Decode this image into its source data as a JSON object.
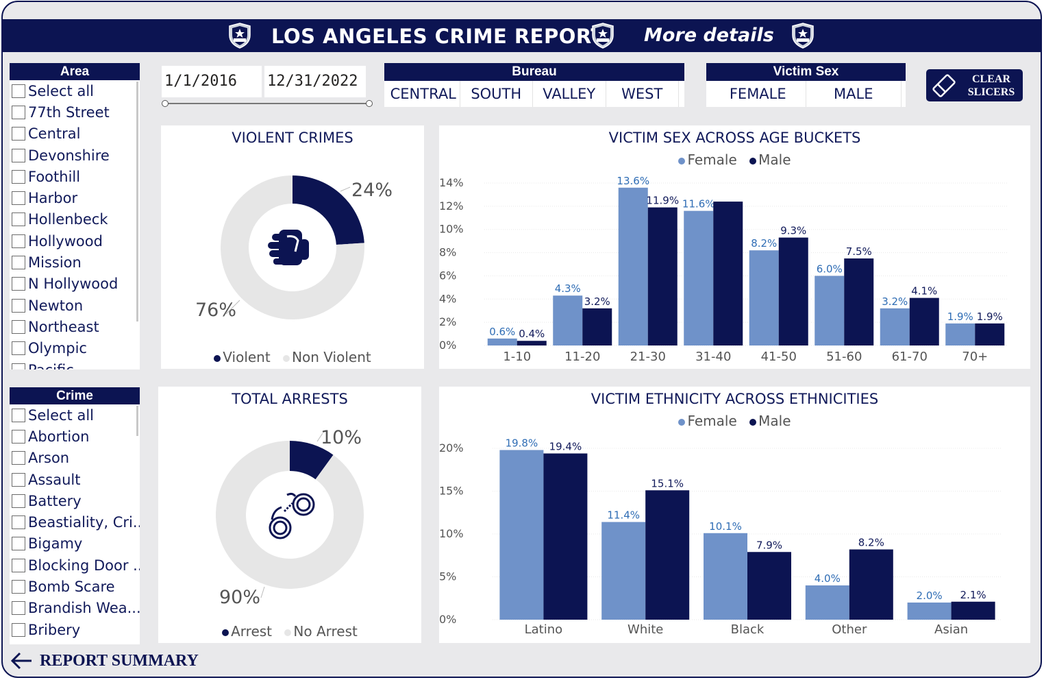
{
  "header": {
    "title": "LOS ANGELES CRIME REPORT",
    "more_details": "More details"
  },
  "area_slicer": {
    "title": "Area",
    "items": [
      "Select all",
      "77th Street",
      "Central",
      "Devonshire",
      "Foothill",
      "Harbor",
      "Hollenbeck",
      "Hollywood",
      "Mission",
      "N Hollywood",
      "Newton",
      "Northeast",
      "Olympic",
      "Pacific"
    ]
  },
  "crime_slicer": {
    "title": "Crime",
    "items": [
      "Select all",
      "Abortion",
      "Arson",
      "Assault",
      "Battery",
      "Beastiality, Cri...",
      "Bigamy",
      "Blocking Door ...",
      "Bomb Scare",
      "Brandish Wea...",
      "Bribery"
    ]
  },
  "date_range": {
    "start": "1/1/2016",
    "end": "12/31/2022"
  },
  "bureau_slicer": {
    "title": "Bureau",
    "options": [
      "CENTRAL",
      "SOUTH",
      "VALLEY",
      "WEST"
    ]
  },
  "victim_sex_slicer": {
    "title": "Victim Sex",
    "options": [
      "FEMALE",
      "MALE"
    ]
  },
  "clear_button": {
    "line1": "CLEAR",
    "line2": "SLICERS"
  },
  "footer": {
    "label": "REPORT SUMMARY"
  },
  "colors": {
    "navy": "#0c1452",
    "light_blue": "#6f92c9",
    "light_gray": "#e6e6e6",
    "female_label": "#2f6db5"
  },
  "chart_data": [
    {
      "type": "pie",
      "title": "VIOLENT CRIMES",
      "categories": [
        "Violent",
        "Non Violent"
      ],
      "values": [
        24,
        76
      ],
      "labels": [
        "24%",
        "76%"
      ],
      "legend": [
        "Violent",
        "Non Violent"
      ],
      "icon": "fist-icon"
    },
    {
      "type": "pie",
      "title": "TOTAL ARRESTS",
      "categories": [
        "Arrest",
        "No Arrest"
      ],
      "values": [
        10,
        90
      ],
      "labels": [
        "10%",
        "90%"
      ],
      "legend": [
        "Arrest",
        "No Arrest"
      ],
      "icon": "handcuffs-icon"
    },
    {
      "type": "bar",
      "title": "VICTIM SEX ACROSS AGE BUCKETS",
      "categories": [
        "1-10",
        "11-20",
        "21-30",
        "31-40",
        "41-50",
        "51-60",
        "61-70",
        "70+"
      ],
      "series": [
        {
          "name": "Female",
          "values": [
            0.6,
            4.3,
            13.6,
            11.6,
            8.2,
            6.0,
            3.2,
            1.9
          ],
          "labels": [
            "0.6%",
            "4.3%",
            "13.6%",
            "11.6%",
            "8.2%",
            "6.0%",
            "3.2%",
            "1.9%"
          ]
        },
        {
          "name": "Male",
          "values": [
            0.4,
            3.2,
            11.9,
            12.4,
            9.3,
            7.5,
            4.1,
            1.9
          ],
          "labels": [
            "0.4%",
            "3.2%",
            "11.9%",
            "",
            "9.3%",
            "7.5%",
            "4.1%",
            "1.9%"
          ]
        }
      ],
      "yticks": [
        "0%",
        "2%",
        "4%",
        "6%",
        "8%",
        "10%",
        "12%",
        "14%"
      ],
      "ylim": [
        0,
        14.5
      ],
      "legend_position": "top-center"
    },
    {
      "type": "bar",
      "title": "VICTIM ETHNICITY ACROSS ETHNICITIES",
      "categories": [
        "Latino",
        "White",
        "Black",
        "Other",
        "Asian"
      ],
      "series": [
        {
          "name": "Female",
          "values": [
            19.8,
            11.4,
            10.1,
            4.0,
            2.0
          ],
          "labels": [
            "19.8%",
            "11.4%",
            "10.1%",
            "4.0%",
            "2.0%"
          ]
        },
        {
          "name": "Male",
          "values": [
            19.4,
            15.1,
            7.9,
            8.2,
            2.1
          ],
          "labels": [
            "19.4%",
            "15.1%",
            "7.9%",
            "8.2%",
            "2.1%"
          ]
        }
      ],
      "yticks": [
        "0%",
        "5%",
        "10%",
        "15%",
        "20%"
      ],
      "ylim": [
        0,
        21
      ],
      "legend_position": "top-center"
    }
  ]
}
